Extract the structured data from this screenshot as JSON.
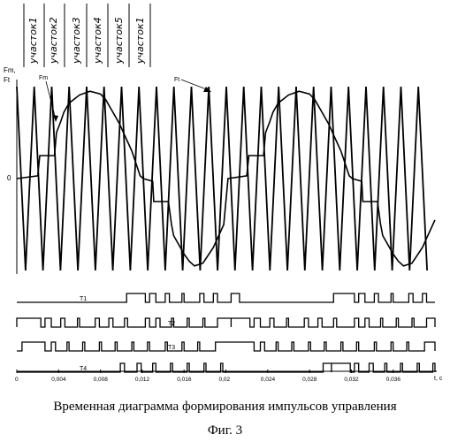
{
  "chart_data": {
    "type": "line",
    "title": "",
    "section_labels": [
      "участок1",
      "участок2",
      "участок3",
      "участок4",
      "участок5",
      "участок1"
    ],
    "y_axis_label": [
      "Fm,",
      "Ft"
    ],
    "y_zero_label": "0",
    "x_axis_label": "t, c",
    "x_ticks": [
      "0",
      "0,004",
      "0,008",
      "0,012",
      "0,016",
      "0,02",
      "0,024",
      "0,028",
      "0,032",
      "0,036"
    ],
    "xlim": [
      0,
      0.04
    ],
    "curve_labels": {
      "fm": "Fm",
      "ft": "Ft"
    },
    "carrier_period_s": 0.00167,
    "pulse_traces": [
      {
        "name": "T1",
        "high_intervals": [
          [
            0.0105,
            0.0123
          ],
          [
            0.0127,
            0.0133
          ],
          [
            0.0142,
            0.0146
          ],
          [
            0.0158,
            0.016
          ],
          [
            0.0175,
            0.0179
          ],
          [
            0.0188,
            0.0192
          ],
          [
            0.0205,
            0.0213
          ],
          [
            0.0303,
            0.0323
          ],
          [
            0.0327,
            0.0333
          ],
          [
            0.0342,
            0.0346
          ],
          [
            0.0358,
            0.036
          ],
          [
            0.0375,
            0.0379
          ],
          [
            0.0388,
            0.0392
          ]
        ]
      },
      {
        "name": "T2",
        "high_intervals": [
          [
            0.0,
            0.0023
          ],
          [
            0.0027,
            0.0033
          ],
          [
            0.0042,
            0.0046
          ],
          [
            0.0058,
            0.006
          ],
          [
            0.0075,
            0.0079
          ],
          [
            0.0088,
            0.0092
          ],
          [
            0.0103,
            0.0106
          ],
          [
            0.0123,
            0.0127
          ],
          [
            0.0133,
            0.0137
          ],
          [
            0.0148,
            0.015
          ],
          [
            0.0163,
            0.0165
          ],
          [
            0.0178,
            0.018
          ],
          [
            0.0192,
            0.0205
          ],
          [
            0.0205,
            0.0223
          ],
          [
            0.0227,
            0.0233
          ],
          [
            0.0242,
            0.0246
          ],
          [
            0.0258,
            0.026
          ],
          [
            0.0275,
            0.0279
          ],
          [
            0.0288,
            0.0292
          ],
          [
            0.0303,
            0.0306
          ],
          [
            0.0323,
            0.0327
          ],
          [
            0.0333,
            0.0337
          ],
          [
            0.0348,
            0.035
          ],
          [
            0.0363,
            0.0365
          ],
          [
            0.0378,
            0.038
          ],
          [
            0.0392,
            0.04
          ]
        ]
      },
      {
        "name": "T3",
        "high_intervals": [
          [
            0.0005,
            0.0027
          ],
          [
            0.0033,
            0.0037
          ],
          [
            0.0048,
            0.005
          ],
          [
            0.0063,
            0.0065
          ],
          [
            0.0079,
            0.0081
          ],
          [
            0.0094,
            0.0096
          ],
          [
            0.011,
            0.0112
          ],
          [
            0.0125,
            0.0127
          ],
          [
            0.0142,
            0.0144
          ],
          [
            0.0158,
            0.016
          ],
          [
            0.0173,
            0.0175
          ],
          [
            0.019,
            0.0227
          ],
          [
            0.0233,
            0.0237
          ],
          [
            0.0248,
            0.025
          ],
          [
            0.0263,
            0.0265
          ],
          [
            0.0279,
            0.0281
          ],
          [
            0.0294,
            0.0296
          ],
          [
            0.031,
            0.0312
          ],
          [
            0.0325,
            0.0327
          ],
          [
            0.0342,
            0.0344
          ],
          [
            0.0358,
            0.036
          ],
          [
            0.0373,
            0.0375
          ],
          [
            0.039,
            0.04
          ]
        ]
      },
      {
        "name": "T4",
        "high_intervals": [
          [
            0.0099,
            0.0103
          ],
          [
            0.0115,
            0.0119
          ],
          [
            0.013,
            0.0133
          ],
          [
            0.0147,
            0.0149
          ],
          [
            0.0163,
            0.0165
          ],
          [
            0.0179,
            0.0181
          ],
          [
            0.0195,
            0.0197
          ],
          [
            0.0293,
            0.0301
          ],
          [
            0.0301,
            0.0319
          ],
          [
            0.0323,
            0.0327
          ],
          [
            0.0337,
            0.0341
          ],
          [
            0.0352,
            0.0354
          ],
          [
            0.0367,
            0.0369
          ],
          [
            0.0383,
            0.0385
          ],
          [
            0.0398,
            0.04
          ]
        ]
      }
    ],
    "fm_points": [
      [
        0.0,
        0.0
      ],
      [
        0.002,
        0.03
      ],
      [
        0.0022,
        0.25
      ],
      [
        0.0036,
        0.25
      ],
      [
        0.0038,
        0.5
      ],
      [
        0.0042,
        0.62
      ],
      [
        0.0045,
        0.72
      ],
      [
        0.005,
        0.82
      ],
      [
        0.006,
        0.91
      ],
      [
        0.007,
        0.95
      ],
      [
        0.008,
        0.92
      ],
      [
        0.0085,
        0.86
      ],
      [
        0.0092,
        0.72
      ],
      [
        0.0098,
        0.6
      ],
      [
        0.0104,
        0.45
      ],
      [
        0.011,
        0.3
      ],
      [
        0.0118,
        0.03
      ],
      [
        0.0121,
        0.0
      ],
      [
        0.013,
        -0.03
      ],
      [
        0.0131,
        -0.25
      ],
      [
        0.0145,
        -0.25
      ],
      [
        0.0148,
        -0.5
      ],
      [
        0.015,
        -0.62
      ],
      [
        0.016,
        -0.82
      ],
      [
        0.0165,
        -0.9
      ],
      [
        0.017,
        -0.95
      ],
      [
        0.0178,
        -0.92
      ],
      [
        0.0188,
        -0.75
      ],
      [
        0.0198,
        -0.5
      ],
      [
        0.0202,
        0.0
      ],
      [
        0.022,
        0.03
      ],
      [
        0.0222,
        0.25
      ],
      [
        0.0236,
        0.25
      ],
      [
        0.0238,
        0.5
      ],
      [
        0.0242,
        0.62
      ],
      [
        0.0245,
        0.72
      ],
      [
        0.025,
        0.82
      ],
      [
        0.026,
        0.91
      ],
      [
        0.027,
        0.95
      ],
      [
        0.028,
        0.92
      ],
      [
        0.0285,
        0.86
      ],
      [
        0.0292,
        0.72
      ],
      [
        0.0298,
        0.6
      ],
      [
        0.0304,
        0.45
      ],
      [
        0.031,
        0.3
      ],
      [
        0.0318,
        0.03
      ],
      [
        0.0321,
        0.0
      ],
      [
        0.033,
        -0.03
      ],
      [
        0.0331,
        -0.25
      ],
      [
        0.0345,
        -0.25
      ],
      [
        0.0348,
        -0.5
      ],
      [
        0.035,
        -0.62
      ],
      [
        0.036,
        -0.82
      ],
      [
        0.0365,
        -0.9
      ],
      [
        0.037,
        -0.95
      ],
      [
        0.0378,
        -0.92
      ],
      [
        0.0388,
        -0.75
      ],
      [
        0.0398,
        -0.5
      ],
      [
        0.04,
        -0.45
      ]
    ]
  },
  "caption": {
    "line1": "Временная диаграмма формирования импульсов управления",
    "line2": "Фиг. 3"
  }
}
